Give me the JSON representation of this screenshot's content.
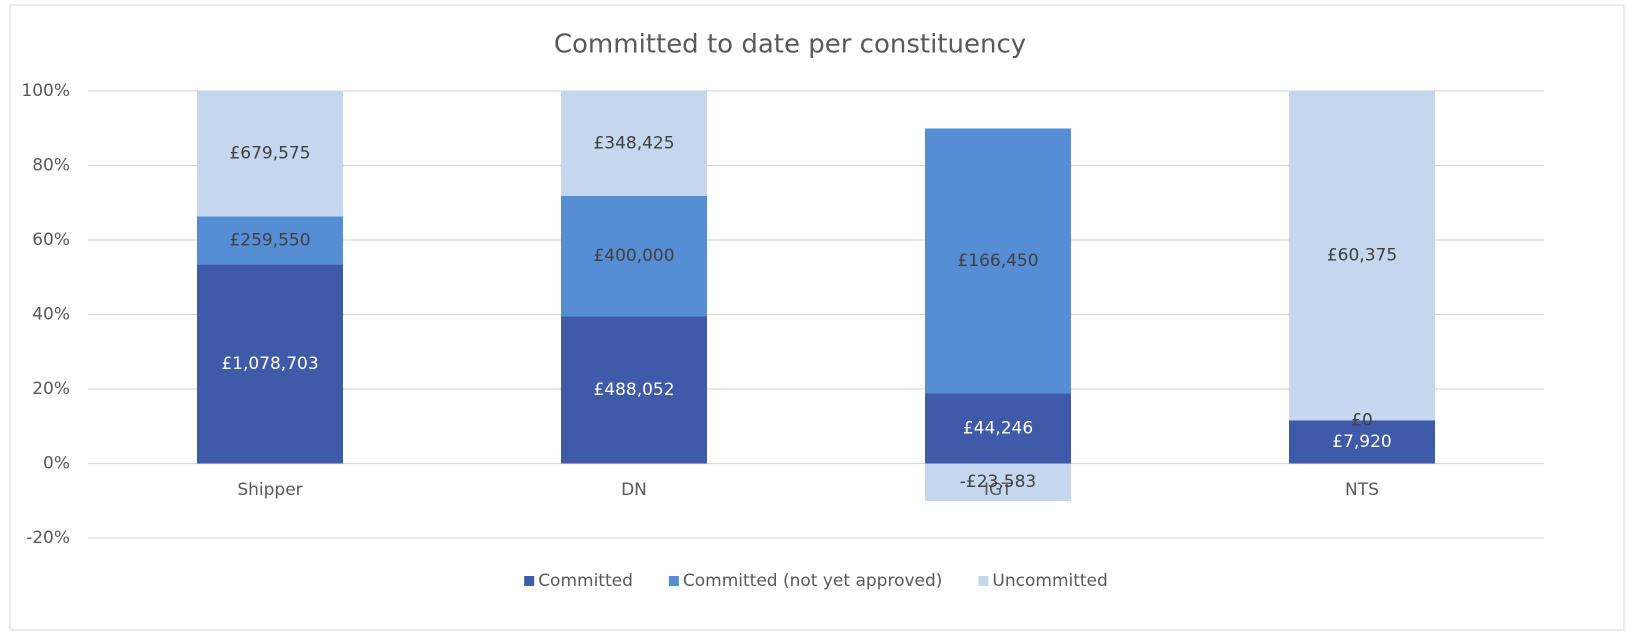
{
  "chart_data": {
    "type": "bar",
    "stacked": "percent",
    "title": "Committed to date per constituency",
    "categories": [
      "Shipper",
      "DN",
      "IGT",
      "NTS"
    ],
    "series": [
      {
        "name": "Committed",
        "color": "#3f5aa8",
        "values": [
          1078703,
          488052,
          44246,
          7920
        ],
        "value_labels": [
          "£1,078,703",
          "£488,052",
          "£44,246",
          "£7,920"
        ]
      },
      {
        "name": "Committed (not yet approved)",
        "color": "#558ed5",
        "values": [
          259550,
          400000,
          166450,
          0
        ],
        "value_labels": [
          "£259,550",
          "£400,000",
          "£166,450",
          "£0"
        ]
      },
      {
        "name": "Uncommitted",
        "color": "#c5d7ef",
        "values": [
          679575,
          348425,
          -23583,
          60375
        ],
        "value_labels": [
          "£679,575",
          "£348,425",
          "-£23,583",
          "£60,375"
        ]
      }
    ],
    "ylim": [
      -20,
      100
    ],
    "yticks": [
      {
        "value": -20,
        "label": "-20%"
      },
      {
        "value": 0,
        "label": "0%"
      },
      {
        "value": 20,
        "label": "20%"
      },
      {
        "value": 40,
        "label": "40%"
      },
      {
        "value": 60,
        "label": "60%"
      },
      {
        "value": 80,
        "label": "80%"
      },
      {
        "value": 100,
        "label": "100%"
      }
    ],
    "grid": true,
    "legend": "bottom"
  }
}
